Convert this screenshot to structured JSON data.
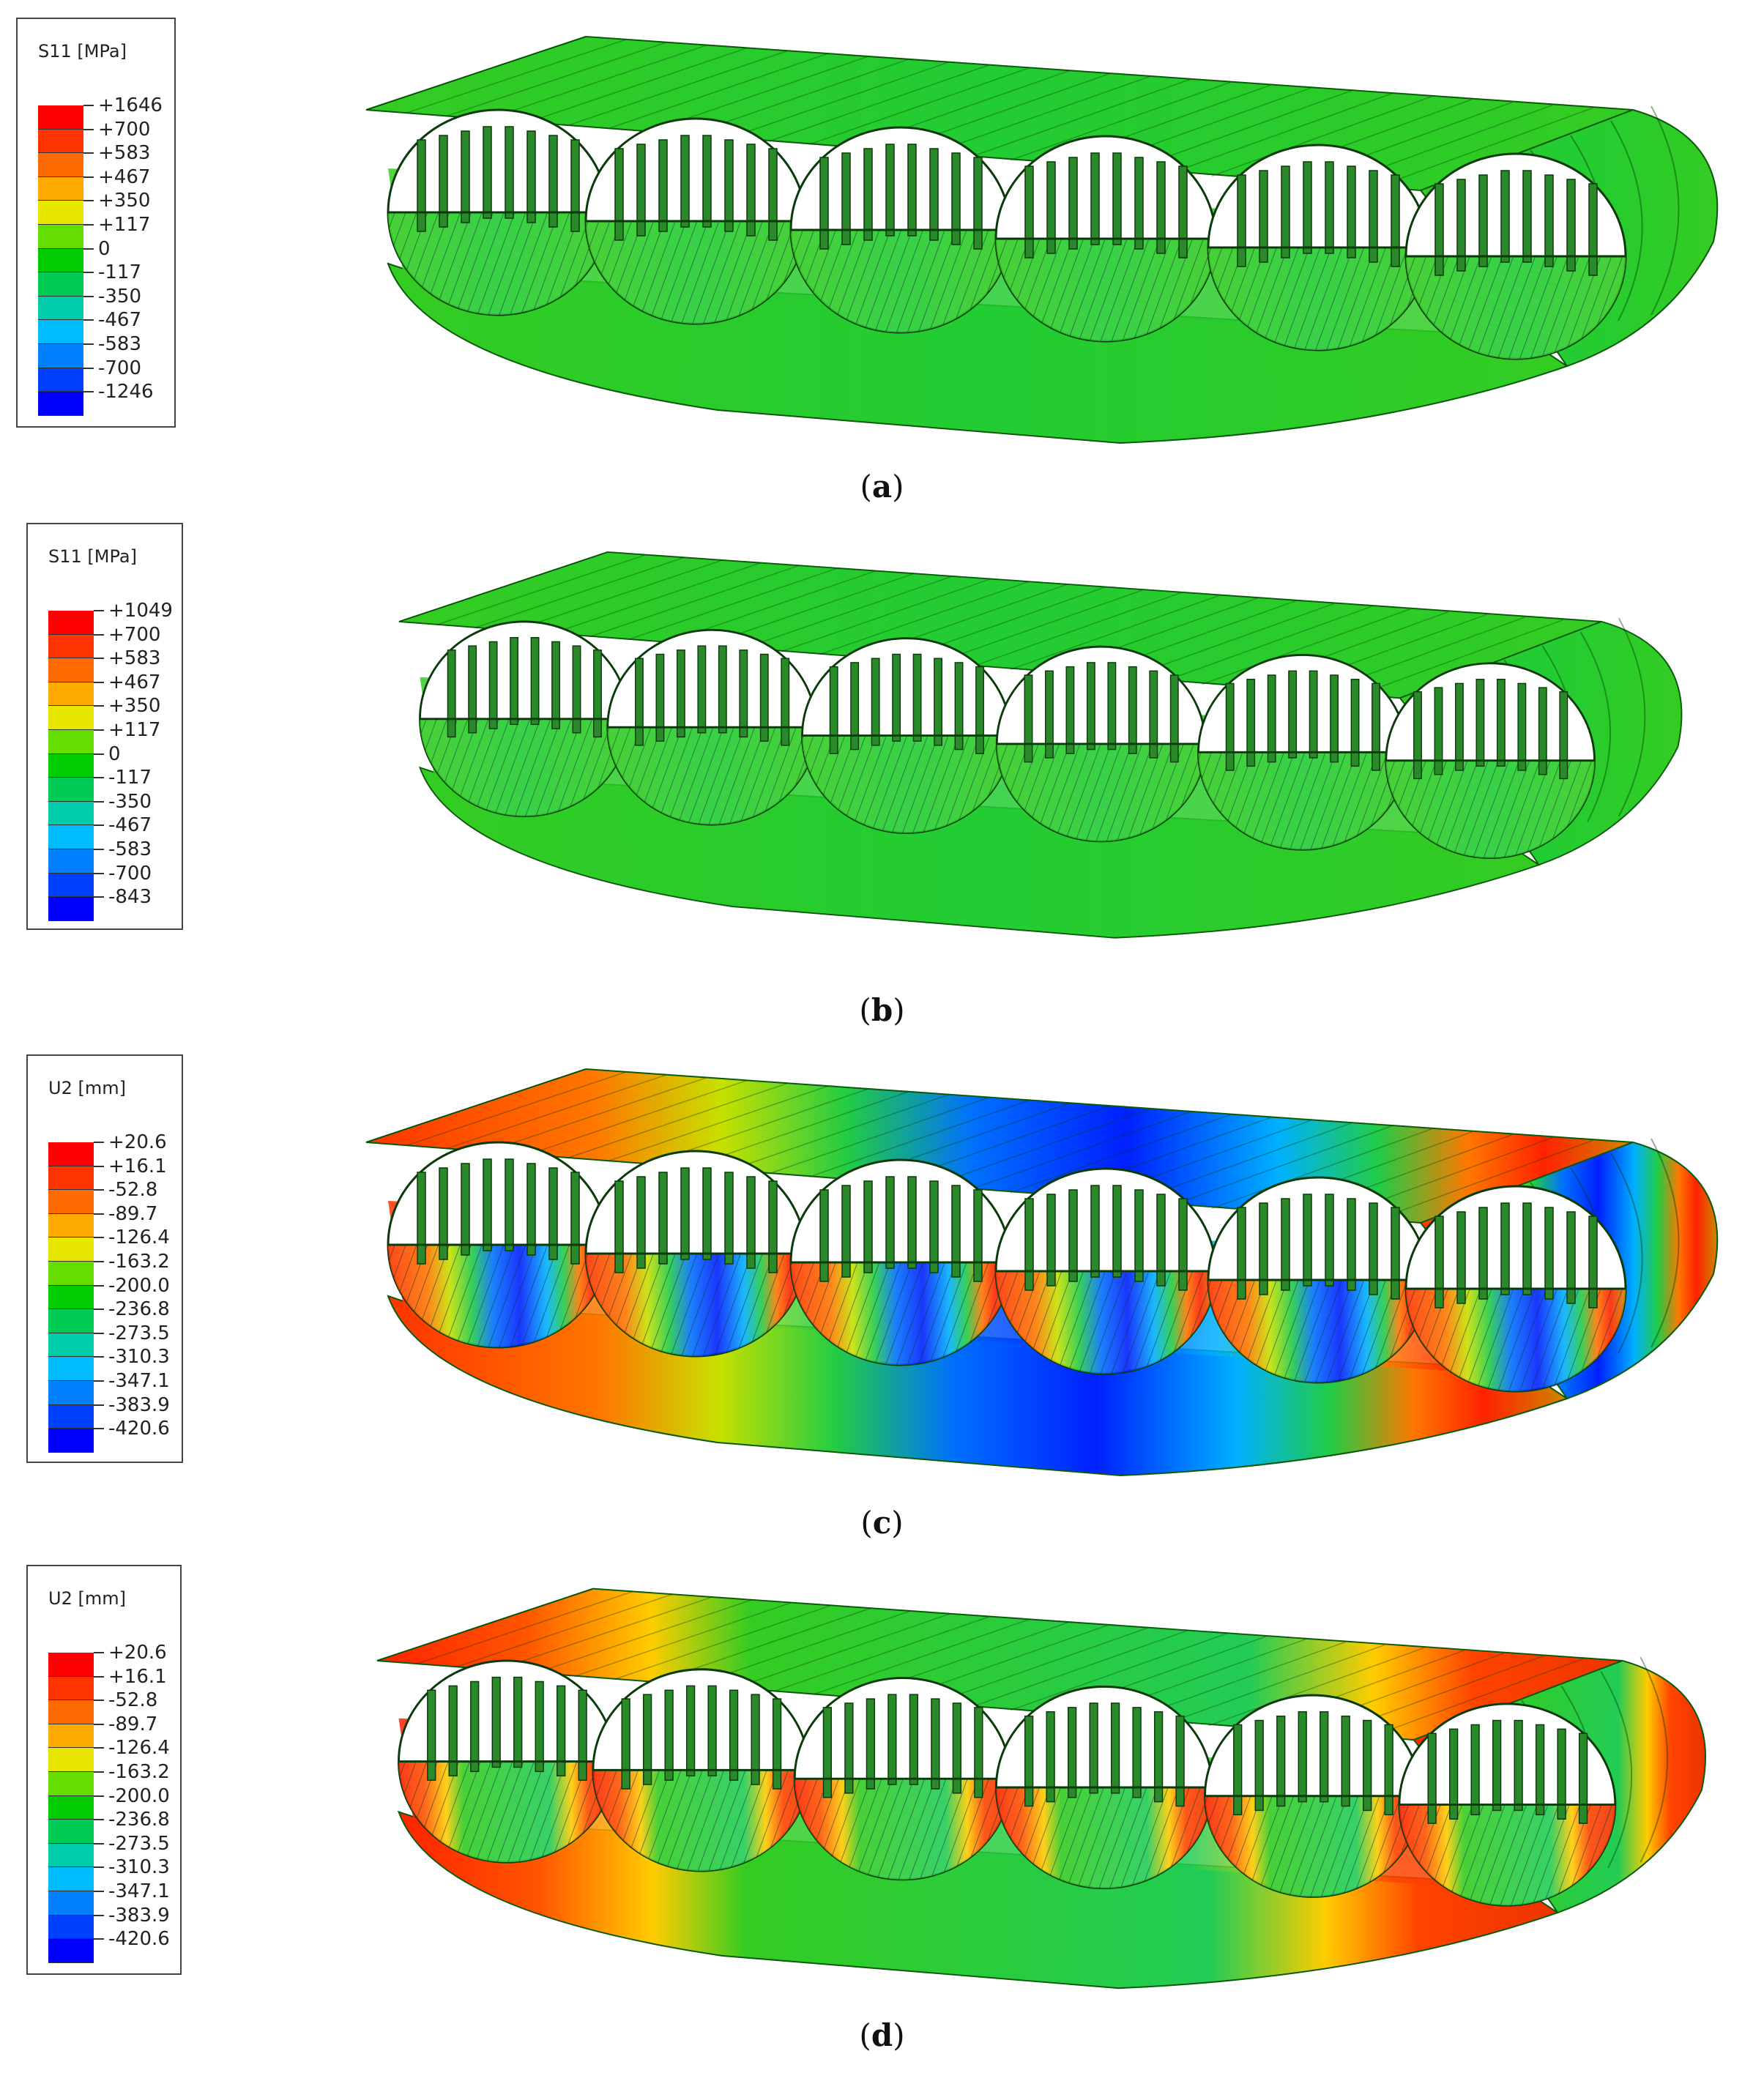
{
  "panels": [
    {
      "caption_letter": "a",
      "legend_title": "S11 [MPa]",
      "labels": [
        "+1646",
        "+700",
        "+583",
        "+467",
        "+350",
        "+117",
        "0",
        "-117",
        "-350",
        "-467",
        "-583",
        "-700",
        "-1246"
      ],
      "colors": [
        "#ff0000",
        "#ff3300",
        "#ff6a00",
        "#ffaa00",
        "#e6e600",
        "#66dd00",
        "#00cc00",
        "#00cc55",
        "#00ccaa",
        "#00bbff",
        "#0080ff",
        "#0040ff",
        "#0000ff"
      ]
    },
    {
      "caption_letter": "b",
      "legend_title": "S11 [MPa]",
      "labels": [
        "+1049",
        "+700",
        "+583",
        "+467",
        "+350",
        "+117",
        "0",
        "-117",
        "-350",
        "-467",
        "-583",
        "-700",
        "-843"
      ],
      "colors": [
        "#ff0000",
        "#ff3300",
        "#ff6a00",
        "#ffaa00",
        "#e6e600",
        "#66dd00",
        "#00cc00",
        "#00cc55",
        "#00ccaa",
        "#00bbff",
        "#0080ff",
        "#0040ff",
        "#0000ff"
      ]
    },
    {
      "caption_letter": "c",
      "legend_title": "U2 [mm]",
      "labels": [
        "+20.6",
        "+16.1",
        "-52.8",
        "-89.7",
        "-126.4",
        "-163.2",
        "-200.0",
        "-236.8",
        "-273.5",
        "-310.3",
        "-347.1",
        "-383.9",
        "-420.6"
      ],
      "colors": [
        "#ff0000",
        "#ff3300",
        "#ff6a00",
        "#ffaa00",
        "#e6e600",
        "#66dd00",
        "#00cc00",
        "#00cc55",
        "#00ccaa",
        "#00bbff",
        "#0080ff",
        "#0040ff",
        "#0000ff"
      ]
    },
    {
      "caption_letter": "d",
      "legend_title": "U2 [mm]",
      "labels": [
        "+20.6",
        "+16.1",
        "-52.8",
        "-89.7",
        "-126.4",
        "-163.2",
        "-200.0",
        "-236.8",
        "-273.5",
        "-310.3",
        "-347.1",
        "-383.9",
        "-420.6"
      ],
      "colors": [
        "#ff0000",
        "#ff3300",
        "#ff6a00",
        "#ffaa00",
        "#e6e600",
        "#66dd00",
        "#00cc00",
        "#00cc55",
        "#00ccaa",
        "#00bbff",
        "#0080ff",
        "#0040ff",
        "#0000ff"
      ]
    }
  ]
}
